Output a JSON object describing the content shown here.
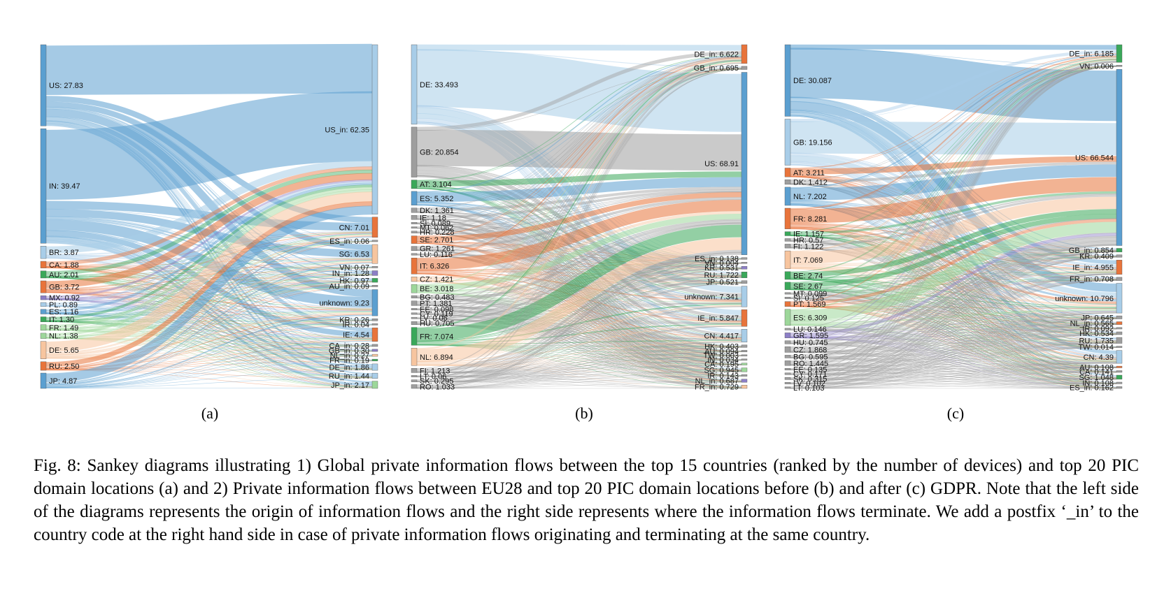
{
  "colors": {
    "blue": "#5b9fd0",
    "light_blue": "#a8cde8",
    "orange": "#e8743b",
    "light_orange": "#f7c59f",
    "green": "#3aa85a",
    "light_green": "#9dd79a",
    "purple": "#8c7fc6",
    "gray": "#9e9e9e"
  },
  "caption": "Fig. 8: Sankey diagrams illustrating 1) Global private information flows between the top 15 countries (ranked by the number of devices) and top 20 PIC domain locations (a) and 2) Private information flows between EU28 and top 20 PIC domain locations before (b) and after (c) GDPR. Note that the left side of the diagrams represents the origin of information flows and the right side represents where the information flows terminate. We add a postfix ‘_in’ to the country code at the right hand side in case of private information flows originating and terminating at the same country.",
  "diagrams": [
    {
      "id": "a",
      "sublabel": "(a)",
      "sources": [
        {
          "name": "US",
          "value": 27.83,
          "label": "US: 27.83",
          "color": "blue"
        },
        {
          "name": "IN",
          "value": 39.47,
          "label": "IN: 39.47",
          "color": "blue"
        },
        {
          "name": "BR",
          "value": 3.87,
          "label": "BR: 3.87",
          "color": "light_blue"
        },
        {
          "name": "CA",
          "value": 1.88,
          "label": "CA: 1.88",
          "color": "orange"
        },
        {
          "name": "AU",
          "value": 2.01,
          "label": "AU: 2.01",
          "color": "green"
        },
        {
          "name": "GB",
          "value": 3.72,
          "label": "GB: 3.72",
          "color": "orange"
        },
        {
          "name": "MX",
          "value": 0.92,
          "label": "MX: 0.92",
          "color": "purple"
        },
        {
          "name": "PL",
          "value": 0.89,
          "label": "PL: 0.89",
          "color": "light_blue"
        },
        {
          "name": "ES",
          "value": 1.16,
          "label": "ES: 1.16",
          "color": "blue"
        },
        {
          "name": "IT",
          "value": 1.3,
          "label": "IT: 1.30",
          "color": "green"
        },
        {
          "name": "FR",
          "value": 1.49,
          "label": "FR: 1.49",
          "color": "light_green"
        },
        {
          "name": "NL",
          "value": 1.38,
          "label": "NL: 1.38",
          "color": "light_green"
        },
        {
          "name": "DE",
          "value": 5.65,
          "label": "DE: 5.65",
          "color": "light_orange"
        },
        {
          "name": "RU",
          "value": 2.5,
          "label": "RU: 2.50",
          "color": "orange"
        },
        {
          "name": "JP",
          "value": 4.87,
          "label": "JP: 4.87",
          "color": "blue"
        }
      ],
      "targets": [
        {
          "name": "US_in",
          "value": 62.35,
          "label": "US_in: 62.35",
          "color": "light_blue"
        },
        {
          "name": "CN",
          "value": 7.01,
          "label": "CN: 7.01",
          "color": "orange"
        },
        {
          "name": "ES_in",
          "value": 0.06,
          "label": "ES_in: 0.06",
          "color": "gray"
        },
        {
          "name": "SG",
          "value": 6.53,
          "label": "SG: 6.53",
          "color": "light_orange"
        },
        {
          "name": "VN",
          "value": 0.07,
          "label": "VN: 0.07",
          "color": "gray"
        },
        {
          "name": "IN_in",
          "value": 1.28,
          "label": "IN_in: 1.28",
          "color": "purple"
        },
        {
          "name": "HK",
          "value": 0.97,
          "label": "HK: 0.97",
          "color": "green"
        },
        {
          "name": "AU_in",
          "value": 0.09,
          "label": "AU_in: 0.09",
          "color": "gray"
        },
        {
          "name": "unknown",
          "value": 9.23,
          "label": "unknown: 9.23",
          "color": "blue"
        },
        {
          "name": "KR",
          "value": 0.26,
          "label": "KR: 0.26",
          "color": "gray"
        },
        {
          "name": "IR",
          "value": 0.04,
          "label": "IR: 0.04",
          "color": "gray"
        },
        {
          "name": "IE",
          "value": 4.54,
          "label": "IE: 4.54",
          "color": "orange"
        },
        {
          "name": "CA_in",
          "value": 0.28,
          "label": "CA_in: 0.28",
          "color": "gray"
        },
        {
          "name": "GB_in",
          "value": 0.3,
          "label": "GB_in: 0.30",
          "color": "purple"
        },
        {
          "name": "NL_in",
          "value": 0.27,
          "label": "NL_in: 0.27",
          "color": "light_orange"
        },
        {
          "name": "FR_in",
          "value": 0.19,
          "label": "FR_in: 0.19",
          "color": "green"
        },
        {
          "name": "DE_in",
          "value": 1.86,
          "label": "DE_in: 1.86",
          "color": "light_blue"
        },
        {
          "name": "RU_in",
          "value": 1.44,
          "label": "RU_in: 1.44",
          "color": "light_blue"
        },
        {
          "name": "JP_in",
          "value": 2.17,
          "label": "JP_in: 2.17",
          "color": "light_green"
        }
      ]
    },
    {
      "id": "b",
      "sublabel": "(b)",
      "sources": [
        {
          "name": "DE",
          "value": 33.493,
          "label": "DE: 33.493",
          "color": "light_blue"
        },
        {
          "name": "GB",
          "value": 20.854,
          "label": "GB: 20.854",
          "color": "gray"
        },
        {
          "name": "AT",
          "value": 3.104,
          "label": "AT: 3.104",
          "color": "green"
        },
        {
          "name": "ES",
          "value": 5.352,
          "label": "ES: 5.352",
          "color": "blue"
        },
        {
          "name": "DK",
          "value": 1.361,
          "label": "DK: 1.361",
          "color": "gray"
        },
        {
          "name": "IE",
          "value": 1.18,
          "label": "IE: 1.18",
          "color": "gray"
        },
        {
          "name": "SI",
          "value": 0.089,
          "label": "SI: 0.089",
          "color": "gray"
        },
        {
          "name": "MT",
          "value": 0.062,
          "label": "MT: 0.062",
          "color": "gray"
        },
        {
          "name": "HR",
          "value": 0.228,
          "label": "HR: 0.228",
          "color": "gray"
        },
        {
          "name": "SE",
          "value": 2.701,
          "label": "SE: 2.701",
          "color": "orange"
        },
        {
          "name": "GR",
          "value": 1.261,
          "label": "GR: 1.261",
          "color": "gray"
        },
        {
          "name": "LU",
          "value": 0.116,
          "label": "LU: 0.116",
          "color": "gray"
        },
        {
          "name": "IT",
          "value": 6.326,
          "label": "IT: 6.326",
          "color": "orange"
        },
        {
          "name": "CZ",
          "value": 1.421,
          "label": "CZ: 1.421",
          "color": "light_orange"
        },
        {
          "name": "BE",
          "value": 3.018,
          "label": "BE: 3.018",
          "color": "light_green"
        },
        {
          "name": "BG",
          "value": 0.483,
          "label": "BG: 0.483",
          "color": "gray"
        },
        {
          "name": "PT",
          "value": 1.381,
          "label": "PT: 1.381",
          "color": "gray"
        },
        {
          "name": "EE",
          "value": 0.098,
          "label": "EE: 0.098",
          "color": "gray"
        },
        {
          "name": "CY",
          "value": 0.119,
          "label": "CY: 0.119",
          "color": "gray"
        },
        {
          "name": "LV",
          "value": 0.06,
          "label": "LV: 0.06",
          "color": "gray"
        },
        {
          "name": "HU",
          "value": 0.705,
          "label": "HU: 0.705",
          "color": "gray"
        },
        {
          "name": "FR",
          "value": 7.074,
          "label": "FR: 7.074",
          "color": "green"
        },
        {
          "name": "NL",
          "value": 6.894,
          "label": "NL: 6.894",
          "color": "light_orange"
        },
        {
          "name": "FI",
          "value": 1.213,
          "label": "FI: 1.213",
          "color": "gray"
        },
        {
          "name": "LT",
          "value": 0.06,
          "label": "LT: 0.06",
          "color": "gray"
        },
        {
          "name": "SK",
          "value": 0.295,
          "label": "SK: 0.295",
          "color": "gray"
        },
        {
          "name": "RO",
          "value": 1.033,
          "label": "RO: 1.033",
          "color": "gray"
        }
      ],
      "targets": [
        {
          "name": "DE_in",
          "value": 6.622,
          "label": "DE_in: 6.622",
          "color": "orange"
        },
        {
          "name": "GB_in",
          "value": 0.695,
          "label": "GB_in: 0.695",
          "color": "gray"
        },
        {
          "name": "US",
          "value": 68.91,
          "label": "US: 68.91",
          "color": "blue"
        },
        {
          "name": "ES_in",
          "value": 0.138,
          "label": "ES_in: 0.138",
          "color": "gray"
        },
        {
          "name": "VN",
          "value": 0.004,
          "label": "VN: 0.004",
          "color": "gray"
        },
        {
          "name": "KR",
          "value": 0.531,
          "label": "KR: 0.531",
          "color": "purple"
        },
        {
          "name": "RU",
          "value": 1.722,
          "label": "RU: 1.722",
          "color": "green"
        },
        {
          "name": "JP",
          "value": 0.521,
          "label": "JP: 0.521",
          "color": "gray"
        },
        {
          "name": "unknown",
          "value": 7.341,
          "label": "unknown: 7.341",
          "color": "light_blue"
        },
        {
          "name": "IE_in",
          "value": 5.847,
          "label": "IE_in: 5.847",
          "color": "orange"
        },
        {
          "name": "CN",
          "value": 4.417,
          "label": "CN: 4.417",
          "color": "light_blue"
        },
        {
          "name": "HK",
          "value": 0.403,
          "label": "HK: 0.403",
          "color": "gray"
        },
        {
          "name": "AU",
          "value": 0.094,
          "label": "AU: 0.094",
          "color": "gray"
        },
        {
          "name": "TW",
          "value": 0.003,
          "label": "TW: 0.003",
          "color": "gray"
        },
        {
          "name": "IN",
          "value": 0.034,
          "label": "IN: 0.034",
          "color": "gray"
        },
        {
          "name": "CA",
          "value": 0.195,
          "label": "CA: 0.195",
          "color": "light_green"
        },
        {
          "name": "SG",
          "value": 0.945,
          "label": "SG: 0.945",
          "color": "light_green"
        },
        {
          "name": "IR",
          "value": 0.143,
          "label": "IR: 0.143",
          "color": "gray"
        },
        {
          "name": "NL_in",
          "value": 0.687,
          "label": "NL_in: 0.687",
          "color": "purple"
        },
        {
          "name": "FR_in",
          "value": 0.729,
          "label": "FR_in: 0.729",
          "color": "light_orange"
        }
      ]
    },
    {
      "id": "c",
      "sublabel": "(c)",
      "sources": [
        {
          "name": "DE",
          "value": 30.087,
          "label": "DE: 30.087",
          "color": "blue"
        },
        {
          "name": "GB",
          "value": 19.156,
          "label": "GB: 19.156",
          "color": "light_blue"
        },
        {
          "name": "AT",
          "value": 3.211,
          "label": "AT: 3.211",
          "color": "orange"
        },
        {
          "name": "DK",
          "value": 1.412,
          "label": "DK: 1.412",
          "color": "gray"
        },
        {
          "name": "NL",
          "value": 7.202,
          "label": "NL: 7.202",
          "color": "blue"
        },
        {
          "name": "FR",
          "value": 8.281,
          "label": "FR: 8.281",
          "color": "orange"
        },
        {
          "name": "IE",
          "value": 1.157,
          "label": "IE: 1.157",
          "color": "green"
        },
        {
          "name": "HR",
          "value": 0.57,
          "label": "HR: 0.57",
          "color": "gray"
        },
        {
          "name": "FI",
          "value": 1.122,
          "label": "FI: 1.122",
          "color": "gray"
        },
        {
          "name": "IT",
          "value": 7.069,
          "label": "IT: 7.069",
          "color": "light_orange"
        },
        {
          "name": "BE",
          "value": 2.74,
          "label": "BE: 2.74",
          "color": "green"
        },
        {
          "name": "SE",
          "value": 2.67,
          "label": "SE: 2.67",
          "color": "green"
        },
        {
          "name": "MT",
          "value": 0.099,
          "label": "MT: 0.099",
          "color": "gray"
        },
        {
          "name": "SI",
          "value": 0.125,
          "label": "SI: 0.125",
          "color": "gray"
        },
        {
          "name": "PT",
          "value": 1.569,
          "label": "PT: 1.569",
          "color": "orange"
        },
        {
          "name": "ES",
          "value": 6.309,
          "label": "ES: 6.309",
          "color": "light_green"
        },
        {
          "name": "LU",
          "value": 0.146,
          "label": "LU: 0.146",
          "color": "gray"
        },
        {
          "name": "GR",
          "value": 1.595,
          "label": "GR: 1.595",
          "color": "purple"
        },
        {
          "name": "HU",
          "value": 0.745,
          "label": "HU: 0.745",
          "color": "gray"
        },
        {
          "name": "CZ",
          "value": 1.868,
          "label": "CZ: 1.868",
          "color": "gray"
        },
        {
          "name": "BG",
          "value": 0.595,
          "label": "BG: 0.595",
          "color": "gray"
        },
        {
          "name": "RO",
          "value": 1.445,
          "label": "RO: 1.445",
          "color": "gray"
        },
        {
          "name": "EE",
          "value": 0.135,
          "label": "EE: 0.135",
          "color": "gray"
        },
        {
          "name": "CY",
          "value": 0.171,
          "label": "CY: 0.171",
          "color": "gray"
        },
        {
          "name": "SK",
          "value": 0.315,
          "label": "SK: 0.315",
          "color": "gray"
        },
        {
          "name": "LV",
          "value": 0.102,
          "label": "LV: 0.102",
          "color": "gray"
        },
        {
          "name": "LT",
          "value": 0.103,
          "label": "LT: 0.103",
          "color": "gray"
        }
      ],
      "targets": [
        {
          "name": "DE_in",
          "value": 6.185,
          "label": "DE_in: 6.185",
          "color": "green"
        },
        {
          "name": "VN",
          "value": 0.006,
          "label": "VN: 0.006",
          "color": "gray"
        },
        {
          "name": "US",
          "value": 66.544,
          "label": "US: 66.544",
          "color": "blue"
        },
        {
          "name": "GB_in",
          "value": 0.854,
          "label": "GB_in: 0.854",
          "color": "green"
        },
        {
          "name": "KR",
          "value": 0.409,
          "label": "KR: 0.409",
          "color": "gray"
        },
        {
          "name": "IE_in",
          "value": 4.955,
          "label": "IE_in: 4.955",
          "color": "orange"
        },
        {
          "name": "FR_in",
          "value": 0.708,
          "label": "FR_in: 0.708",
          "color": "gray"
        },
        {
          "name": "unknown",
          "value": 10.796,
          "label": "unknown: 10.796",
          "color": "light_blue"
        },
        {
          "name": "JP",
          "value": 0.645,
          "label": "JP: 0.645",
          "color": "gray"
        },
        {
          "name": "NL_in",
          "value": 0.565,
          "label": "NL_in: 0.565",
          "color": "orange"
        },
        {
          "name": "IR",
          "value": 0.092,
          "label": "IR: 0.092",
          "color": "gray"
        },
        {
          "name": "HK",
          "value": 0.534,
          "label": "HK: 0.534",
          "color": "gray"
        },
        {
          "name": "RU",
          "value": 1.735,
          "label": "RU: 1.735",
          "color": "gray"
        },
        {
          "name": "TW",
          "value": 0.014,
          "label": "TW: 0.014",
          "color": "gray"
        },
        {
          "name": "CN",
          "value": 4.39,
          "label": "CN: 4.39",
          "color": "light_blue"
        },
        {
          "name": "AU",
          "value": 0.108,
          "label": "AU: 0.108",
          "color": "orange"
        },
        {
          "name": "CA",
          "value": 0.141,
          "label": "CA: 0.141",
          "color": "gray"
        },
        {
          "name": "SG",
          "value": 1.048,
          "label": "SG: 1.048",
          "color": "green"
        },
        {
          "name": "IN",
          "value": 0.108,
          "label": "IN: 0.108",
          "color": "gray"
        },
        {
          "name": "ES_in",
          "value": 0.162,
          "label": "ES_in: 0.162",
          "color": "gray"
        }
      ]
    }
  ]
}
